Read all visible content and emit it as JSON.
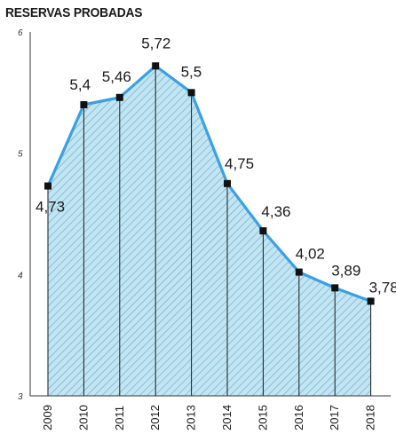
{
  "chart_data": {
    "type": "area",
    "title": "RESERVAS PROBADAS",
    "xlabel": "",
    "ylabel": "",
    "categories": [
      "2009",
      "2010",
      "2011",
      "2012",
      "2013",
      "2014",
      "2015",
      "2016",
      "2017",
      "2018"
    ],
    "values": [
      4.73,
      5.4,
      5.46,
      5.72,
      5.5,
      4.75,
      4.36,
      4.02,
      3.89,
      3.78
    ],
    "value_labels": [
      "4,73",
      "5,4",
      "5,46",
      "5,72",
      "5,5",
      "4,75",
      "4,36",
      "4,02",
      "3,89",
      "3,78"
    ],
    "y_ticks": [
      {
        "value": 3,
        "label": "3"
      },
      {
        "value": 4,
        "label": "4"
      },
      {
        "value": 5,
        "label": "5"
      },
      {
        "value": 6,
        "label": "6"
      }
    ],
    "ylim": [
      3,
      6
    ],
    "line_color": "#3aa0e6",
    "fill_color": "#bfe6f5",
    "hatch_color": "#7f9fb3",
    "marker_color": "#111111",
    "grid": false,
    "legend": "none"
  }
}
